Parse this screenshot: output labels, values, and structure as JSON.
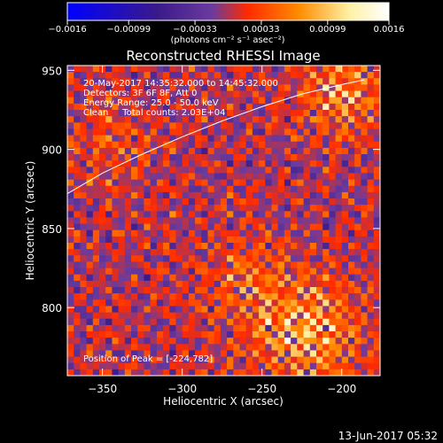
{
  "chart_data": {
    "type": "heatmap",
    "title": "Reconstructed RHESSI Image",
    "xlabel": "Heliocentric X (arcsec)",
    "ylabel": "Heliocentric Y (arcsec)",
    "xlim": [
      -372,
      -176
    ],
    "ylim": [
      757,
      953
    ],
    "x_ticks": [
      -350,
      -300,
      -250,
      -200
    ],
    "x_tick_labels": [
      "−350",
      "−300",
      "−250",
      "−200"
    ],
    "y_ticks": [
      800,
      850,
      900,
      950
    ],
    "y_tick_labels": [
      "800",
      "850",
      "900",
      "950"
    ],
    "colorbar": {
      "range": [
        -0.0016,
        0.0016
      ],
      "ticks": [
        -0.0016,
        -0.00099,
        -0.00033,
        0.00033,
        0.00099,
        0.0016
      ],
      "tick_labels": [
        "−0.0016",
        "−0.00099",
        "−0.00033",
        "0.00033",
        "0.00099",
        "0.0016"
      ],
      "units_label": "(photons cm⁻² s⁻¹ asec⁻²)",
      "colormap": [
        "#0000ff",
        "#4b1a8c",
        "#6a3b9e",
        "#ff2a00",
        "#ff8c00",
        "#fff7c2",
        "#ffffff"
      ]
    },
    "annotations": [
      "20-May-2017 14:35:32.000 to 14:45:32.000",
      "Detectors: 3F 6F 8F, Att 0",
      "Energy Range: 25.0 - 50.0 keV",
      "Clean     Total counts: 2.03E+04"
    ],
    "peak_label": "Position of Peak = [-224,782]",
    "peak_position": [
      -224,
      782
    ],
    "limb": [
      [
        -372,
        872
      ],
      [
        -350,
        885
      ],
      [
        -325,
        897
      ],
      [
        -300,
        908
      ],
      [
        -275,
        918
      ],
      [
        -250,
        927
      ],
      [
        -225,
        935
      ],
      [
        -200,
        941
      ],
      [
        -186,
        944
      ]
    ],
    "bright_regions": [
      {
        "x": -222,
        "y": 785,
        "sigma": 22,
        "amp": 0.0014
      },
      {
        "x": -200,
        "y": 935,
        "sigma": 18,
        "amp": 0.0011
      },
      {
        "x": -262,
        "y": 818,
        "sigma": 20,
        "amp": 0.0007
      },
      {
        "x": -345,
        "y": 905,
        "sigma": 20,
        "amp": 0.0005
      }
    ]
  },
  "footer_date": "13-Jun-2017 05:32"
}
